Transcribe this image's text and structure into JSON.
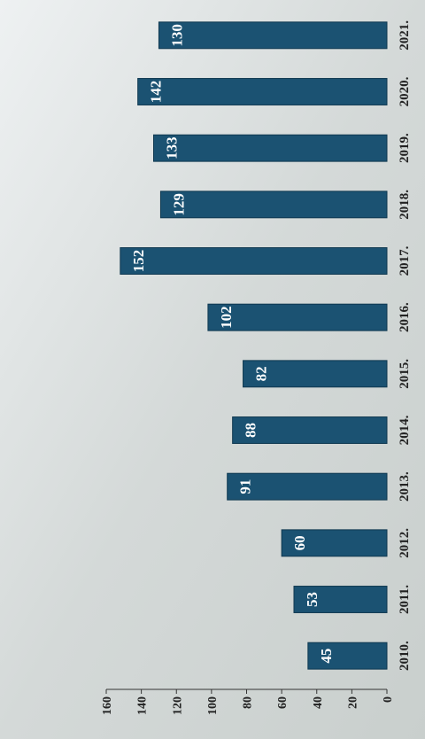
{
  "chart_data": {
    "type": "bar",
    "categories": [
      "2010.",
      "2011.",
      "2012.",
      "2013.",
      "2014.",
      "2015.",
      "2016.",
      "2017.",
      "2018.",
      "2019.",
      "2020.",
      "2021."
    ],
    "values": [
      45,
      53,
      60,
      91,
      88,
      82,
      102,
      152,
      129,
      133,
      142,
      130
    ],
    "color": "#1b5272",
    "ylim": [
      0,
      160
    ],
    "yticks": [
      0,
      20,
      40,
      60,
      80,
      100,
      120,
      140,
      160
    ],
    "grid": false
  }
}
